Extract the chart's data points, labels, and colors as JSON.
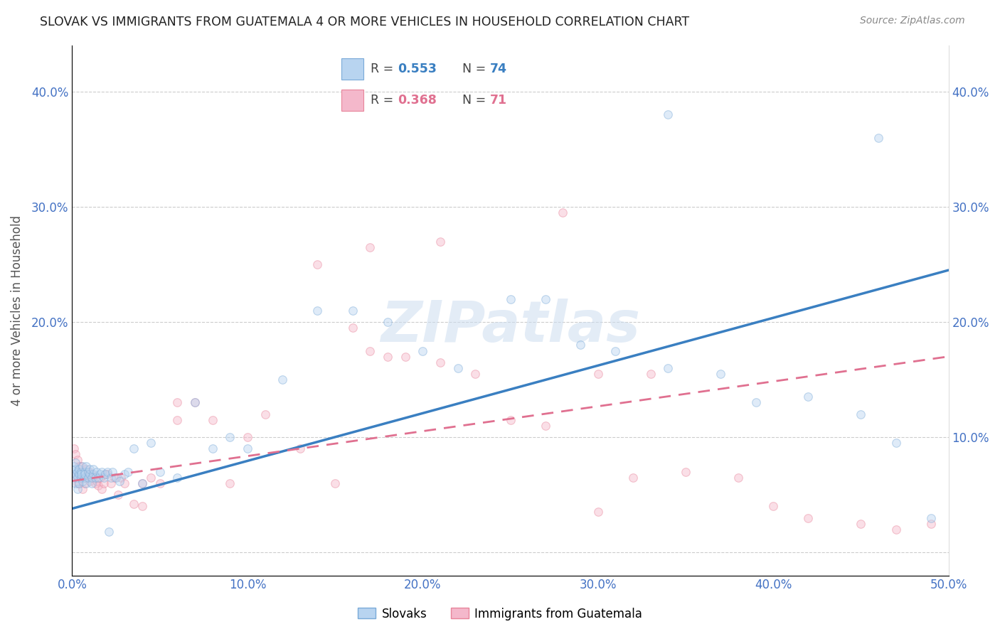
{
  "title": "SLOVAK VS IMMIGRANTS FROM GUATEMALA 4 OR MORE VEHICLES IN HOUSEHOLD CORRELATION CHART",
  "source": "Source: ZipAtlas.com",
  "ylabel": "4 or more Vehicles in Household",
  "xlim": [
    0.0,
    0.5
  ],
  "ylim": [
    -0.02,
    0.44
  ],
  "xticks": [
    0.0,
    0.1,
    0.2,
    0.3,
    0.4,
    0.5
  ],
  "yticks": [
    0.0,
    0.1,
    0.2,
    0.3,
    0.4
  ],
  "xtick_labels": [
    "0.0%",
    "10.0%",
    "20.0%",
    "30.0%",
    "40.0%",
    "50.0%"
  ],
  "ytick_labels_left": [
    "",
    "",
    "20.0%",
    "30.0%",
    "40.0%"
  ],
  "ytick_labels_right": [
    "",
    "10.0%",
    "20.0%",
    "30.0%",
    "40.0%"
  ],
  "legend_R_blue": "0.553",
  "legend_N_blue": "74",
  "legend_R_pink": "0.368",
  "legend_N_pink": "71",
  "line_blue_color": "#3a7fc1",
  "line_pink_color": "#e07090",
  "watermark": "ZIPatlas",
  "blue_scatter_x": [
    0.001,
    0.001,
    0.001,
    0.002,
    0.002,
    0.002,
    0.002,
    0.003,
    0.003,
    0.003,
    0.004,
    0.004,
    0.004,
    0.005,
    0.005,
    0.005,
    0.006,
    0.006,
    0.007,
    0.007,
    0.007,
    0.008,
    0.008,
    0.009,
    0.009,
    0.01,
    0.01,
    0.011,
    0.011,
    0.012,
    0.012,
    0.013,
    0.014,
    0.015,
    0.016,
    0.017,
    0.018,
    0.019,
    0.02,
    0.021,
    0.022,
    0.023,
    0.025,
    0.027,
    0.03,
    0.032,
    0.035,
    0.04,
    0.045,
    0.05,
    0.06,
    0.07,
    0.08,
    0.09,
    0.1,
    0.12,
    0.14,
    0.16,
    0.18,
    0.2,
    0.22,
    0.25,
    0.27,
    0.29,
    0.31,
    0.34,
    0.37,
    0.39,
    0.42,
    0.45,
    0.47,
    0.49,
    0.34,
    0.46
  ],
  "blue_scatter_y": [
    0.065,
    0.07,
    0.075,
    0.06,
    0.068,
    0.072,
    0.078,
    0.065,
    0.07,
    0.055,
    0.068,
    0.072,
    0.06,
    0.065,
    0.07,
    0.068,
    0.062,
    0.075,
    0.065,
    0.07,
    0.068,
    0.06,
    0.075,
    0.065,
    0.07,
    0.068,
    0.072,
    0.06,
    0.065,
    0.068,
    0.072,
    0.065,
    0.07,
    0.065,
    0.068,
    0.07,
    0.065,
    0.068,
    0.07,
    0.018,
    0.065,
    0.07,
    0.065,
    0.062,
    0.068,
    0.07,
    0.09,
    0.06,
    0.095,
    0.07,
    0.065,
    0.13,
    0.09,
    0.1,
    0.09,
    0.15,
    0.21,
    0.21,
    0.2,
    0.175,
    0.16,
    0.22,
    0.22,
    0.18,
    0.175,
    0.16,
    0.155,
    0.13,
    0.135,
    0.12,
    0.095,
    0.03,
    0.38,
    0.36
  ],
  "pink_scatter_x": [
    0.001,
    0.001,
    0.002,
    0.002,
    0.003,
    0.003,
    0.004,
    0.004,
    0.005,
    0.005,
    0.006,
    0.006,
    0.007,
    0.007,
    0.008,
    0.008,
    0.009,
    0.01,
    0.01,
    0.011,
    0.012,
    0.013,
    0.014,
    0.015,
    0.016,
    0.017,
    0.018,
    0.019,
    0.02,
    0.022,
    0.024,
    0.026,
    0.028,
    0.03,
    0.035,
    0.04,
    0.045,
    0.05,
    0.06,
    0.07,
    0.08,
    0.09,
    0.1,
    0.11,
    0.13,
    0.15,
    0.17,
    0.19,
    0.21,
    0.23,
    0.25,
    0.27,
    0.3,
    0.32,
    0.35,
    0.38,
    0.4,
    0.42,
    0.45,
    0.47,
    0.49,
    0.17,
    0.21,
    0.28,
    0.3,
    0.33,
    0.14,
    0.16,
    0.18,
    0.06,
    0.04
  ],
  "pink_scatter_y": [
    0.09,
    0.068,
    0.085,
    0.065,
    0.08,
    0.06,
    0.075,
    0.06,
    0.075,
    0.065,
    0.07,
    0.055,
    0.065,
    0.06,
    0.072,
    0.065,
    0.068,
    0.062,
    0.07,
    0.068,
    0.065,
    0.06,
    0.062,
    0.058,
    0.065,
    0.055,
    0.06,
    0.068,
    0.068,
    0.06,
    0.065,
    0.05,
    0.065,
    0.06,
    0.042,
    0.06,
    0.065,
    0.06,
    0.13,
    0.13,
    0.115,
    0.06,
    0.1,
    0.12,
    0.09,
    0.06,
    0.175,
    0.17,
    0.165,
    0.155,
    0.115,
    0.11,
    0.035,
    0.065,
    0.07,
    0.065,
    0.04,
    0.03,
    0.025,
    0.02,
    0.025,
    0.265,
    0.27,
    0.295,
    0.155,
    0.155,
    0.25,
    0.195,
    0.17,
    0.115,
    0.04
  ],
  "blue_line_x": [
    0.0,
    0.5
  ],
  "blue_line_y": [
    0.038,
    0.245
  ],
  "pink_line_x": [
    0.0,
    0.5
  ],
  "pink_line_y": [
    0.062,
    0.17
  ],
  "background_color": "#ffffff",
  "grid_color": "#cccccc",
  "axis_color": "#4472c4",
  "scatter_size": 70,
  "scatter_alpha": 0.45
}
